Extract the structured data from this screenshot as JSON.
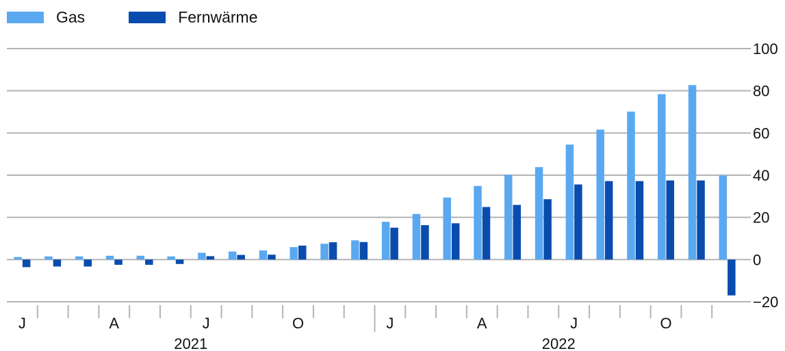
{
  "chart_data": {
    "type": "bar",
    "title": "",
    "xlabel": "",
    "ylabel": "",
    "ylim": [
      -20,
      100
    ],
    "yticks": [
      100,
      80,
      60,
      40,
      20,
      0,
      -20
    ],
    "y_axis_side": "right",
    "grid": true,
    "legend_position": "top-left",
    "periods": [
      "2021-01",
      "2021-02",
      "2021-03",
      "2021-04",
      "2021-05",
      "2021-06",
      "2021-07",
      "2021-08",
      "2021-09",
      "2021-10",
      "2021-11",
      "2021-12",
      "2022-01",
      "2022-02",
      "2022-03",
      "2022-04",
      "2022-05",
      "2022-06",
      "2022-07",
      "2022-08",
      "2022-09",
      "2022-10",
      "2022-11",
      "2022-12"
    ],
    "month_labels": [
      "J",
      "",
      "",
      "A",
      "",
      "",
      "J",
      "",
      "",
      "O",
      "",
      "",
      "J",
      "",
      "",
      "A",
      "",
      "",
      "J",
      "",
      "",
      "O",
      "",
      ""
    ],
    "year_labels": [
      "2021",
      "2022"
    ],
    "series": [
      {
        "name": "Gas",
        "color": "#5aa9f0",
        "values": [
          1.2,
          1.5,
          1.5,
          1.8,
          1.8,
          1.5,
          3.2,
          3.8,
          4.3,
          5.9,
          7.5,
          9.1,
          17.9,
          21.6,
          29.4,
          34.9,
          40.2,
          43.8,
          54.5,
          61.6,
          70.1,
          78.4,
          82.7,
          39.8
        ]
      },
      {
        "name": "Fernwärme",
        "color": "#0a4cad",
        "values": [
          -3.6,
          -3.3,
          -3.3,
          -2.5,
          -2.5,
          -2.1,
          1.6,
          2.2,
          2.3,
          6.6,
          8.2,
          8.3,
          15.1,
          16.3,
          17.2,
          24.9,
          25.9,
          28.6,
          35.6,
          37.2,
          37.2,
          37.5,
          37.5,
          -17.0
        ]
      }
    ]
  }
}
